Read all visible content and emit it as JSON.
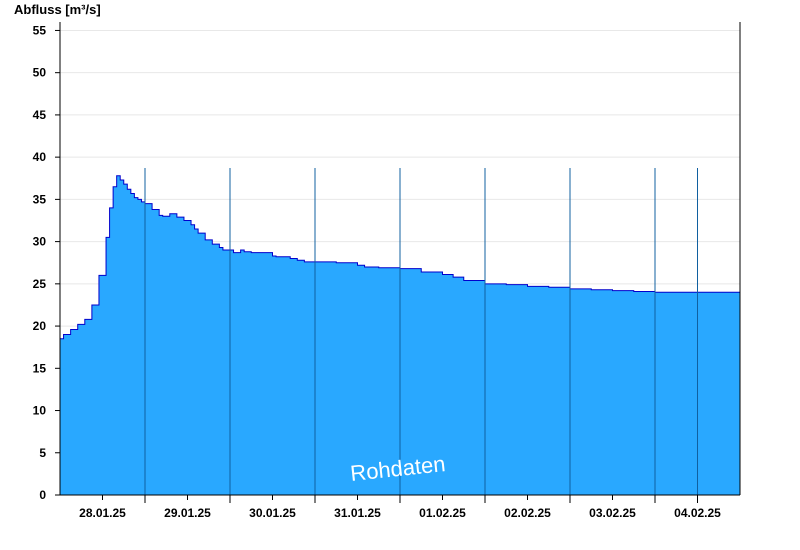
{
  "chart_data": {
    "type": "area",
    "title": "",
    "ylabel": "Abfluss [m³/s]",
    "xlabel": "",
    "watermark": "Rohdaten",
    "ylim": [
      0,
      56
    ],
    "yticks": [
      0,
      5,
      10,
      15,
      20,
      25,
      30,
      35,
      40,
      45,
      50,
      55
    ],
    "grid": true,
    "xlim": [
      "27.01.25 12:00",
      "04.02.25 12:00"
    ],
    "xticks": [
      {
        "label": "28.01.25",
        "pos": "28.01.25 00:00"
      },
      {
        "label": "29.01.25",
        "pos": "29.01.25 00:00"
      },
      {
        "label": "30.01.25",
        "pos": "30.01.25 00:00"
      },
      {
        "label": "31.01.25",
        "pos": "31.01.25 00:00"
      },
      {
        "label": "01.02.25",
        "pos": "01.02.25 00:00"
      },
      {
        "label": "02.02.25",
        "pos": "02.02.25 00:00"
      },
      {
        "label": "03.02.25",
        "pos": "03.02.25 00:00"
      },
      {
        "label": "04.02.25",
        "pos": "04.02.25 00:00"
      }
    ],
    "day_separators": [
      "28.01.25 12:00",
      "29.01.25 12:00",
      "30.01.25 12:00",
      "31.01.25 12:00",
      "01.02.25 12:00",
      "02.02.25 12:00",
      "03.02.25 12:00",
      "04.02.25 00:00"
    ],
    "colors": {
      "fill": "#29a8ff",
      "line": "#0000cc",
      "separator": "#1060a0",
      "grid": "#e8e8e8"
    },
    "x": [
      "27.01.25 12:00",
      "27.01.25 13:00",
      "27.01.25 15:00",
      "27.01.25 17:00",
      "27.01.25 19:00",
      "27.01.25 21:00",
      "27.01.25 23:00",
      "28.01.25 01:00",
      "28.01.25 02:00",
      "28.01.25 03:00",
      "28.01.25 04:00",
      "28.01.25 05:00",
      "28.01.25 06:00",
      "28.01.25 07:00",
      "28.01.25 08:00",
      "28.01.25 09:00",
      "28.01.25 10:00",
      "28.01.25 11:00",
      "28.01.25 12:00",
      "28.01.25 14:00",
      "28.01.25 16:00",
      "28.01.25 17:00",
      "28.01.25 19:00",
      "28.01.25 21:00",
      "28.01.25 23:00",
      "29.01.25 01:00",
      "29.01.25 02:00",
      "29.01.25 03:00",
      "29.01.25 05:00",
      "29.01.25 07:00",
      "29.01.25 09:00",
      "29.01.25 10:00",
      "29.01.25 12:00",
      "29.01.25 13:00",
      "29.01.25 15:00",
      "29.01.25 16:00",
      "29.01.25 18:00",
      "29.01.25 20:00",
      "29.01.25 22:00",
      "30.01.25 00:00",
      "30.01.25 01:00",
      "30.01.25 03:00",
      "30.01.25 05:00",
      "30.01.25 07:00",
      "30.01.25 09:00",
      "30.01.25 12:00",
      "30.01.25 18:00",
      "31.01.25 00:00",
      "31.01.25 02:00",
      "31.01.25 06:00",
      "31.01.25 09:00",
      "31.01.25 12:00",
      "31.01.25 18:00",
      "01.02.25 00:00",
      "01.02.25 03:00",
      "01.02.25 06:00",
      "01.02.25 12:00",
      "01.02.25 18:00",
      "02.02.25 00:00",
      "02.02.25 06:00",
      "02.02.25 12:00",
      "02.02.25 18:00",
      "03.02.25 00:00",
      "03.02.25 06:00",
      "03.02.25 12:00",
      "03.02.25 18:00",
      "04.02.25 00:00",
      "04.02.25 06:00",
      "04.02.25 12:00"
    ],
    "series": [
      {
        "values": [
          18.5,
          19.0,
          19.6,
          20.2,
          20.8,
          22.5,
          26.0,
          30.5,
          34.0,
          36.5,
          37.8,
          37.3,
          36.8,
          36.2,
          35.7,
          35.2,
          35.0,
          34.7,
          34.5,
          33.8,
          33.1,
          33.0,
          33.3,
          32.9,
          32.5,
          32.0,
          31.5,
          31.0,
          30.2,
          29.7,
          29.3,
          29.0,
          29.0,
          28.7,
          29.0,
          28.8,
          28.7,
          28.7,
          28.7,
          28.3,
          28.2,
          28.2,
          28.0,
          27.8,
          27.6,
          27.6,
          27.5,
          27.2,
          27.0,
          26.9,
          26.9,
          26.8,
          26.4,
          26.1,
          25.8,
          25.4,
          25.0,
          24.9,
          24.7,
          24.6,
          24.4,
          24.3,
          24.2,
          24.1,
          24.0,
          24.0,
          24.0,
          24.0,
          24.0
        ]
      }
    ]
  }
}
